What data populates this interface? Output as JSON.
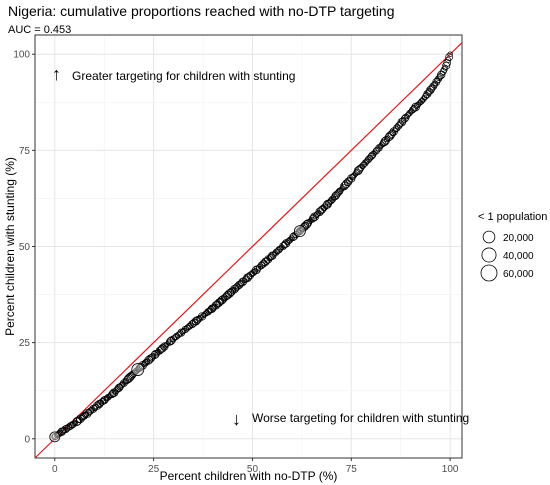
{
  "chart_data": {
    "type": "scatter",
    "title": "Nigeria: cumulative proportions reached with no-DTP targeting",
    "subtitle": "AUC = 0.453",
    "xlabel": "Percent children with no-DTP (%)",
    "ylabel": "Percent children with stunting (%)",
    "xlim": [
      -5,
      103
    ],
    "ylim": [
      -5,
      105
    ],
    "x_ticks": [
      0,
      25,
      50,
      75,
      100
    ],
    "y_ticks": [
      0,
      25,
      50,
      75,
      100
    ],
    "x_tick_labels": [
      "0",
      "25",
      "50",
      "75",
      "100"
    ],
    "y_tick_labels": [
      "0",
      "25",
      "50",
      "75",
      "100"
    ],
    "grid": true,
    "annotations": {
      "upper_arrow": "↑",
      "upper_text": "Greater targeting for children with stunting",
      "lower_arrow": "↓",
      "lower_text": "Worse targeting for children with stunting"
    },
    "reference_line": {
      "x": [
        -5,
        103
      ],
      "y": [
        -5,
        103
      ],
      "color": "#e41a1c"
    },
    "curve": {
      "x": [
        0,
        2,
        5,
        10,
        15,
        21,
        30,
        40,
        50,
        62,
        70,
        77,
        85,
        90,
        93,
        96,
        98,
        99,
        100
      ],
      "y": [
        0.5,
        2,
        4,
        8,
        12,
        18,
        26,
        34,
        43,
        54,
        62,
        70,
        79,
        85,
        88,
        92,
        95,
        97,
        100
      ],
      "color": "#000000",
      "fill": "#d9d9d9"
    },
    "legend": {
      "title": "< 1 population",
      "position": "right",
      "entries": [
        {
          "label": "20,000",
          "population": 20000
        },
        {
          "label": "40,000",
          "population": 40000
        },
        {
          "label": "60,000",
          "population": 60000
        }
      ]
    }
  }
}
